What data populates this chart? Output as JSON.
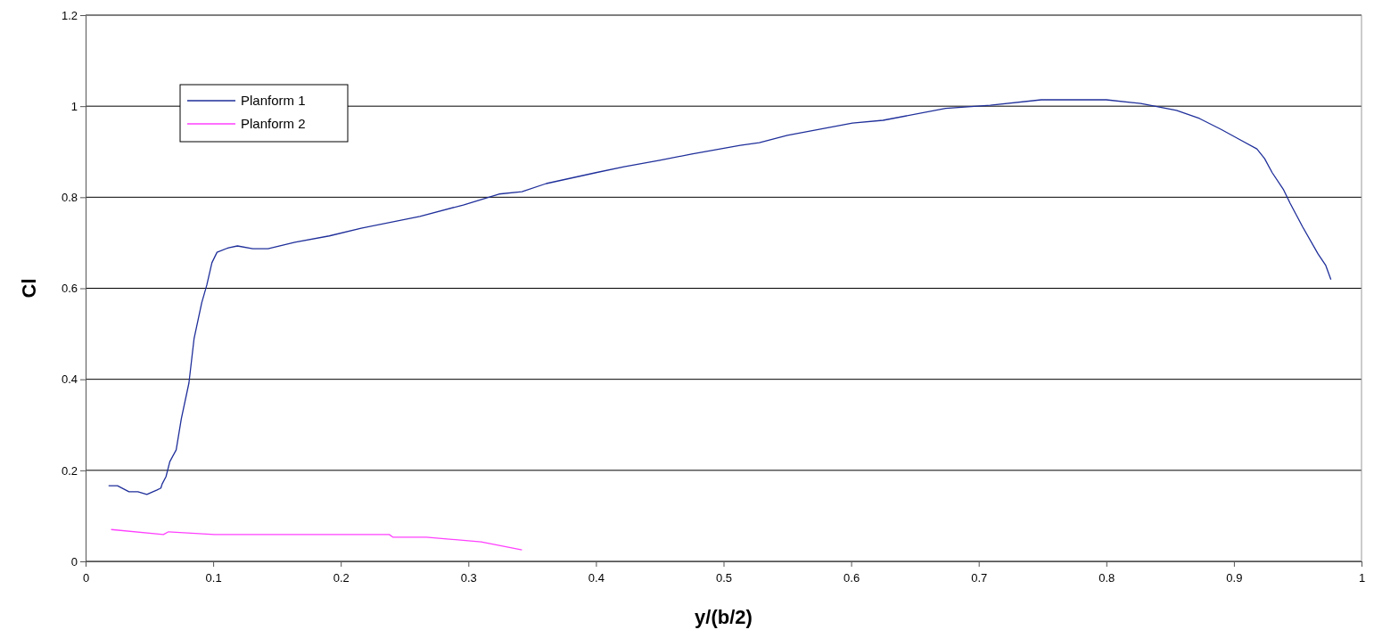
{
  "chart_data": {
    "type": "line",
    "xlabel": "y/(b/2)",
    "ylabel": "Cl",
    "xlim": [
      0,
      1
    ],
    "ylim": [
      0,
      1.2
    ],
    "xticks": [
      0,
      0.1,
      0.2,
      0.3,
      0.4,
      0.5,
      0.6,
      0.7,
      0.8,
      0.9,
      1
    ],
    "yticks": [
      0,
      0.2,
      0.4,
      0.6,
      0.8,
      1,
      1.2
    ],
    "grid": "y",
    "legend": "top left",
    "marker": "none",
    "series": [
      {
        "name": "Planform 1",
        "color": "#1f2f9a",
        "x": [
          0.018,
          0.025,
          0.034,
          0.041,
          0.048,
          0.056,
          0.059,
          0.06,
          0.063,
          0.066,
          0.071,
          0.075,
          0.081,
          0.085,
          0.091,
          0.095,
          0.099,
          0.103,
          0.112,
          0.119,
          0.131,
          0.143,
          0.164,
          0.191,
          0.216,
          0.262,
          0.296,
          0.324,
          0.342,
          0.361,
          0.4,
          0.422,
          0.45,
          0.475,
          0.513,
          0.528,
          0.55,
          0.601,
          0.625,
          0.674,
          0.709,
          0.749,
          0.8,
          0.827,
          0.855,
          0.873,
          0.89,
          0.905,
          0.918,
          0.924,
          0.93,
          0.939,
          0.944,
          0.954,
          0.966,
          0.972,
          0.976
        ],
        "values": [
          0.166,
          0.166,
          0.153,
          0.153,
          0.147,
          0.157,
          0.161,
          0.17,
          0.186,
          0.219,
          0.245,
          0.313,
          0.392,
          0.489,
          0.568,
          0.607,
          0.656,
          0.679,
          0.689,
          0.693,
          0.687,
          0.687,
          0.701,
          0.715,
          0.732,
          0.758,
          0.783,
          0.807,
          0.812,
          0.83,
          0.854,
          0.867,
          0.881,
          0.895,
          0.914,
          0.92,
          0.936,
          0.963,
          0.969,
          0.995,
          1.002,
          1.014,
          1.014,
          1.006,
          0.991,
          0.973,
          0.949,
          0.926,
          0.906,
          0.885,
          0.854,
          0.816,
          0.787,
          0.734,
          0.675,
          0.65,
          0.619
        ]
      },
      {
        "name": "Planform 2",
        "color": "#ff40ff",
        "x": [
          0.02,
          0.061,
          0.065,
          0.101,
          0.191,
          0.238,
          0.241,
          0.267,
          0.31,
          0.342
        ],
        "values": [
          0.07,
          0.059,
          0.065,
          0.059,
          0.059,
          0.059,
          0.053,
          0.053,
          0.043,
          0.025
        ]
      }
    ]
  }
}
